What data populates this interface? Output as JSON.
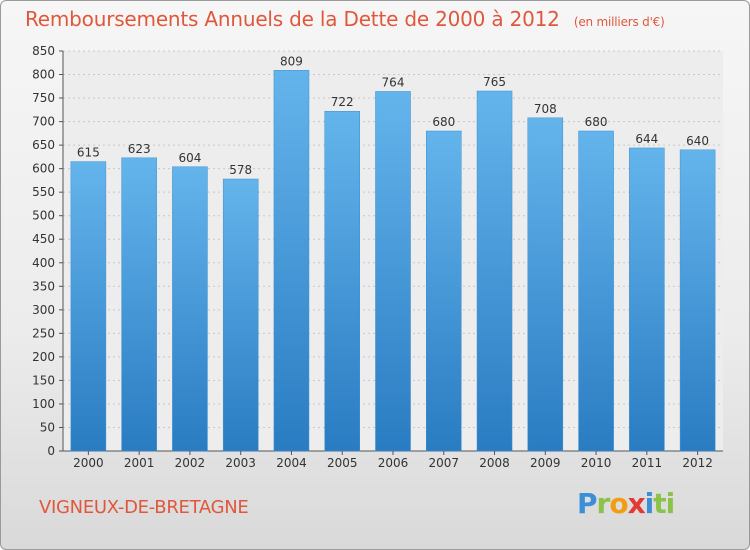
{
  "header": {
    "title": "Remboursements Annuels de la Dette de 2000 à 2012",
    "unit": "(en milliers d'€)"
  },
  "footer": {
    "commune": "VIGNEUX-DE-BRETAGNE",
    "logo": [
      "P",
      "r",
      "o",
      "x",
      "i",
      "ti"
    ]
  },
  "colors": {
    "bar_light": "#64b4ec",
    "bar_dark": "#2a7cc2",
    "title": "#e0583c"
  },
  "chart_data": {
    "type": "bar",
    "title": "Remboursements Annuels de la Dette de 2000 à 2012",
    "xlabel": "",
    "ylabel": "",
    "categories": [
      "2000",
      "2001",
      "2002",
      "2003",
      "2004",
      "2005",
      "2006",
      "2007",
      "2008",
      "2009",
      "2010",
      "2011",
      "2012"
    ],
    "values": [
      615,
      623,
      604,
      578,
      809,
      722,
      764,
      680,
      765,
      708,
      680,
      644,
      640
    ],
    "ylim": [
      0,
      850
    ],
    "yticks": [
      0,
      50,
      100,
      150,
      200,
      250,
      300,
      350,
      400,
      450,
      500,
      550,
      600,
      650,
      700,
      750,
      800,
      850
    ],
    "grid": true
  }
}
